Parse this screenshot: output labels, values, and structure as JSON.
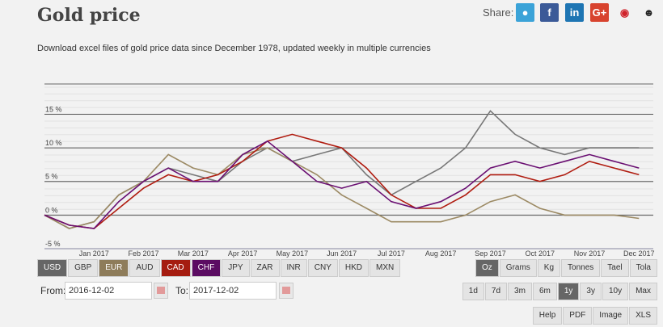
{
  "header": {
    "title": "Gold price",
    "share_label": "Share:",
    "share_icons": [
      "f",
      "in",
      "G+"
    ],
    "subtitle": "Download excel files of gold price data since December 1978, updated weekly in multiple currencies"
  },
  "chart_data": {
    "type": "line",
    "categories": [
      null,
      null,
      "Jan 2017",
      null,
      "Feb 2017",
      null,
      "Mar 2017",
      null,
      "Apr 2017",
      null,
      "May 2017",
      null,
      "Jun 2017",
      null,
      "Jul 2017",
      null,
      "Aug 2017",
      null,
      "Sep 2017",
      null,
      "Oct 2017",
      null,
      "Nov 2017",
      null,
      "Dec 2017"
    ],
    "series": [
      {
        "name": "USD",
        "color": "#777777",
        "values": [
          0,
          -2,
          -1,
          3,
          5,
          7,
          6,
          5,
          8,
          10,
          8,
          9,
          10,
          6,
          3,
          5,
          7,
          10,
          15.5,
          12,
          10,
          9,
          10,
          10,
          10
        ]
      },
      {
        "name": "EUR",
        "color": "#9c8a64",
        "values": [
          0,
          -2,
          -1,
          3,
          5,
          9,
          7,
          6,
          9,
          10,
          8,
          6,
          3,
          1,
          -1,
          -1,
          -1,
          0,
          2,
          3,
          1,
          0,
          0,
          0,
          -0.5
        ]
      },
      {
        "name": "CAD",
        "color": "#b01c10",
        "values": [
          0,
          -1.5,
          -2,
          1,
          4,
          6,
          5,
          6,
          8,
          11,
          12,
          11,
          10,
          7,
          3,
          1,
          1,
          3,
          6,
          6,
          5,
          6,
          8,
          7,
          6
        ]
      },
      {
        "name": "CHF",
        "color": "#6a0f72",
        "values": [
          0,
          -1.5,
          -2,
          2,
          5,
          7,
          5,
          5,
          9,
          11,
          8,
          5,
          4,
          5,
          2,
          1,
          2,
          4,
          7,
          8,
          7,
          8,
          9,
          8,
          7
        ]
      }
    ],
    "ylim": [
      -5,
      19.5
    ],
    "yticks": [
      {
        "value": -5,
        "label": "-5 %"
      },
      {
        "value": 0,
        "label": "0 %"
      },
      {
        "value": 5,
        "label": "5 %"
      },
      {
        "value": 10,
        "label": "10 %"
      },
      {
        "value": 15,
        "label": "15 %"
      }
    ],
    "grid": true
  },
  "ui": {
    "currencies": {
      "GBP": "GBP",
      "AUD": "AUD",
      "JPY": "JPY",
      "ZAR": "ZAR",
      "INR": "INR",
      "CNY": "CNY",
      "HKD": "HKD",
      "MXN": "MXN"
    },
    "units": [
      "Oz",
      "Grams",
      "Kg",
      "Tonnes",
      "Tael",
      "Tola"
    ],
    "from_label": "From:",
    "from_value": "2016-12-02",
    "to_label": "To:",
    "to_value": "2017-12-02",
    "ranges": [
      "1d",
      "7d",
      "3m",
      "6m",
      "1y",
      "3y",
      "10y",
      "Max"
    ],
    "exports": [
      "Help",
      "PDF",
      "Image",
      "XLS"
    ]
  }
}
